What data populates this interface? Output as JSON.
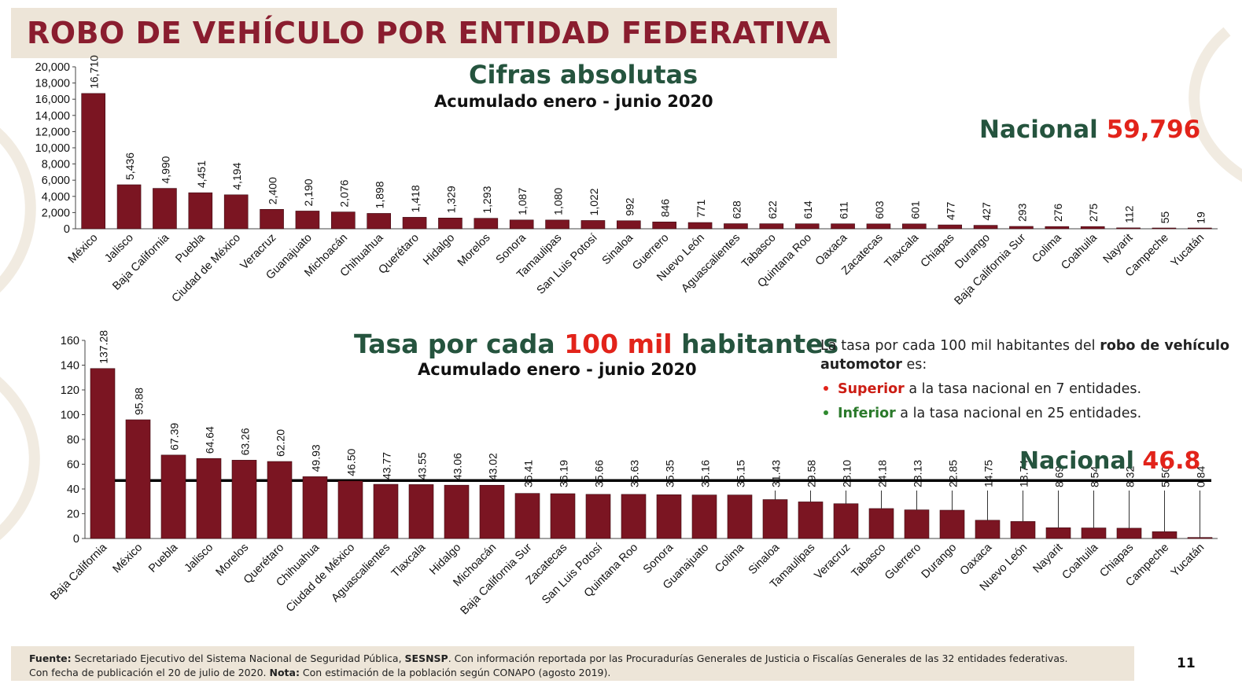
{
  "page": {
    "title": "ROBO DE VEHÍCULO POR ENTIDAD FEDERATIVA",
    "page_number": "11",
    "footer": {
      "fuente_label": "Fuente:",
      "fuente_text": " Secretariado Ejecutivo del Sistema Nacional de Seguridad Pública, ",
      "sesnsp": "SESNSP",
      "fuente_rest": ". Con información reportada por las Procuradurías Generales de Justicia o Fiscalías Generales de las 32 entidades federativas.",
      "line2_start": "Con fecha de publicación el 20 de julio de 2020. ",
      "nota_label": "Nota:",
      "nota_text": " Con estimación de la población según CONAPO (agosto 2019)."
    },
    "colors": {
      "bar": "#7b1522",
      "title": "#8a1d2f",
      "green": "#25543e",
      "red": "#e2231a"
    }
  },
  "chart1": {
    "heading": "Cifras absolutas",
    "subheading": "Acumulado enero - junio 2020",
    "nacional_label": "Nacional",
    "nacional_value": "59,796"
  },
  "chart2": {
    "heading_part1": "Tasa por cada ",
    "heading_part2": "100 mil",
    "heading_part3": " habitantes",
    "subheading": "Acumulado enero - junio 2020",
    "nacional_label": "Nacional",
    "nacional_value": "46.8",
    "note": {
      "intro": "La tasa por cada 100 mil habitantes del ",
      "intro_bold": "robo de vehículo automotor",
      "intro_end": " es:",
      "b1_bold": "Superior",
      "b1_text": " a la tasa nacional en 7 entidades.",
      "b2_bold": "Inferior",
      "b2_text": " a la tasa nacional en 25 entidades."
    }
  },
  "chart_data": [
    {
      "type": "bar",
      "title": "Cifras absolutas",
      "subtitle": "Acumulado enero - junio 2020",
      "categories": [
        "México",
        "Jalisco",
        "Baja California",
        "Puebla",
        "Ciudad de México",
        "Veracruz",
        "Guanajuato",
        "Michoacán",
        "Chihuahua",
        "Querétaro",
        "Hidalgo",
        "Morelos",
        "Sonora",
        "Tamaulipas",
        "San Luis Potosí",
        "Sinaloa",
        "Guerrero",
        "Nuevo León",
        "Aguascalientes",
        "Tabasco",
        "Quintana Roo",
        "Oaxaca",
        "Zacatecas",
        "Tlaxcala",
        "Chiapas",
        "Durango",
        "Baja California Sur",
        "Colima",
        "Coahuila",
        "Nayarit",
        "Campeche",
        "Yucatán"
      ],
      "values": [
        16710,
        5436,
        4990,
        4451,
        4194,
        2400,
        2190,
        2076,
        1898,
        1418,
        1329,
        1293,
        1087,
        1080,
        1022,
        992,
        846,
        771,
        628,
        622,
        614,
        611,
        603,
        601,
        477,
        427,
        293,
        276,
        275,
        112,
        55,
        19
      ],
      "value_labels": [
        "16,710",
        "5,436",
        "4,990",
        "4,451",
        "4,194",
        "2,400",
        "2,190",
        "2,076",
        "1,898",
        "1,418",
        "1,329",
        "1,293",
        "1,087",
        "1,080",
        "1,022",
        "992",
        "846",
        "771",
        "628",
        "622",
        "614",
        "611",
        "603",
        "601",
        "477",
        "427",
        "293",
        "276",
        "275",
        "112",
        "55",
        "19"
      ],
      "ylim": [
        0,
        20000
      ],
      "yticks": [
        "20,000",
        "18,000",
        "16,000",
        "14,000",
        "12,000",
        "10,000",
        "8,000",
        "6,000",
        "4,000",
        "2,000",
        "0"
      ],
      "ytick_values": [
        20000,
        18000,
        16000,
        14000,
        12000,
        10000,
        8000,
        6000,
        4000,
        2000,
        0
      ],
      "grid": false
    },
    {
      "type": "bar",
      "title": "Tasa por cada 100 mil habitantes",
      "subtitle": "Acumulado enero - junio 2020",
      "categories": [
        "Baja California",
        "México",
        "Puebla",
        "Jalisco",
        "Morelos",
        "Querétaro",
        "Chihuahua",
        "Ciudad de México",
        "Aguascalientes",
        "Tlaxcala",
        "Hidalgo",
        "Michoacán",
        "Baja California Sur",
        "Zacatecas",
        "San Luis Potosí",
        "Quintana Roo",
        "Sonora",
        "Guanajuato",
        "Colima",
        "Sinaloa",
        "Tamaulipas",
        "Veracruz",
        "Tabasco",
        "Guerrero",
        "Durango",
        "Oaxaca",
        "Nuevo León",
        "Nayarit",
        "Coahuila",
        "Chiapas",
        "Campeche",
        "Yucatán"
      ],
      "values": [
        137.28,
        95.88,
        67.39,
        64.64,
        63.26,
        62.2,
        49.93,
        46.5,
        43.77,
        43.55,
        43.06,
        43.02,
        36.41,
        36.19,
        35.66,
        35.63,
        35.35,
        35.16,
        35.15,
        31.43,
        29.58,
        28.1,
        24.18,
        23.13,
        22.85,
        14.75,
        13.74,
        8.69,
        8.54,
        8.32,
        5.5,
        0.84
      ],
      "value_labels": [
        "137.28",
        "95.88",
        "67.39",
        "64.64",
        "63.26",
        "62.20",
        "49.93",
        "46.50",
        "43.77",
        "43.55",
        "43.06",
        "43.02",
        "36.41",
        "36.19",
        "35.66",
        "35.63",
        "35.35",
        "35.16",
        "35.15",
        "31.43",
        "29.58",
        "28.10",
        "24.18",
        "23.13",
        "22.85",
        "14.75",
        "13.74",
        "8.69",
        "8.54",
        "8.32",
        "5.50",
        "0.84"
      ],
      "reference_line": 46.8,
      "ylim": [
        0,
        160
      ],
      "yticks": [
        "160",
        "140",
        "120",
        "100",
        "80",
        "60",
        "40",
        "20",
        "0"
      ],
      "ytick_values": [
        160,
        140,
        120,
        100,
        80,
        60,
        40,
        20,
        0
      ],
      "grid": false
    }
  ]
}
